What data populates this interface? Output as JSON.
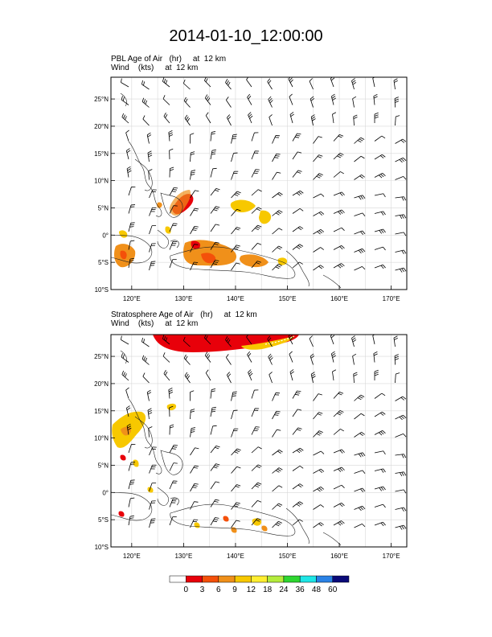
{
  "title": "2014-01-10_12:00:00",
  "panels": [
    {
      "id": "pbl",
      "line1": "PBL Age of Air   (hr)     at  12 km",
      "line2": "Wind    (kts)     at  12 km"
    },
    {
      "id": "strat",
      "line1": "Stratosphere Age of Air   (hr)     at  12 km",
      "line2": "Wind    (kts)     at  12 km"
    }
  ],
  "axes": {
    "lat_ticks": [
      "25°N",
      "20°N",
      "15°N",
      "10°N",
      "5°N",
      "0°",
      "5°S",
      "10°S"
    ],
    "lon_ticks": [
      "120°E",
      "130°E",
      "140°E",
      "150°E",
      "160°E",
      "170°E"
    ],
    "lat_range": [
      -10,
      29
    ],
    "lon_range": [
      116,
      173
    ]
  },
  "colorbar": {
    "labels": [
      "0",
      "3",
      "6",
      "9",
      "12",
      "18",
      "24",
      "36",
      "48",
      "60"
    ],
    "colors": [
      "#ffffff",
      "#e8000a",
      "#f4500a",
      "#f0901a",
      "#f7c800",
      "#ffee30",
      "#b4ec3c",
      "#2ed630",
      "#1ee6e6",
      "#2a82e6",
      "#0a0a78"
    ]
  }
}
